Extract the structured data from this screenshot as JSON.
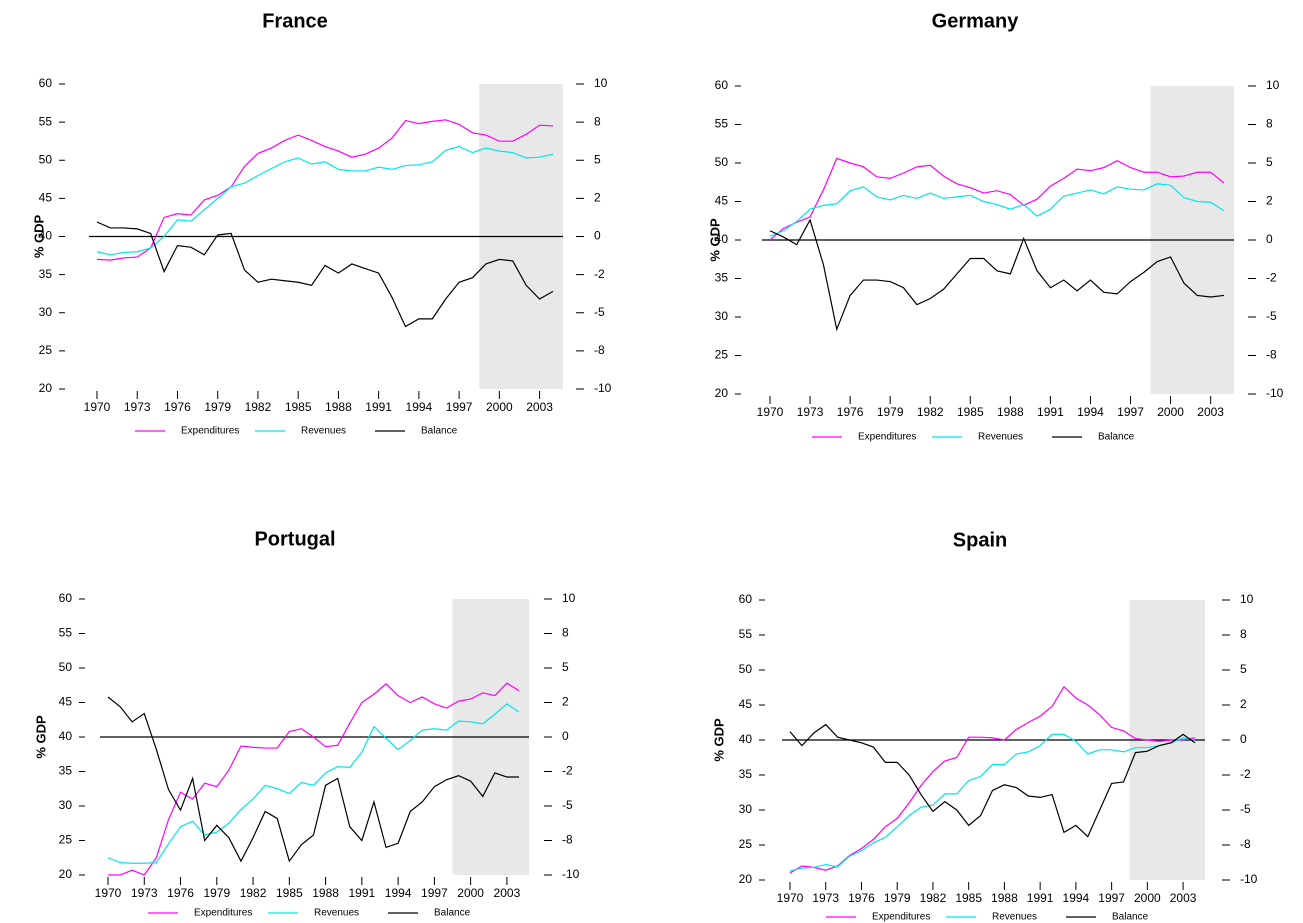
{
  "chart_data": [
    {
      "type": "line",
      "title": "France",
      "ylabel": "% GDP",
      "x": [
        1970,
        1971,
        1972,
        1973,
        1974,
        1975,
        1976,
        1977,
        1978,
        1979,
        1980,
        1981,
        1982,
        1983,
        1984,
        1985,
        1986,
        1987,
        1988,
        1989,
        1990,
        1991,
        1992,
        1993,
        1994,
        1995,
        1996,
        1997,
        1998,
        1999,
        2000,
        2001,
        2002,
        2003,
        2004
      ],
      "xlim": [
        1970,
        2004
      ],
      "xticks": [
        1970,
        1973,
        1976,
        1979,
        1982,
        1985,
        1988,
        1991,
        1994,
        1997,
        2000,
        2003
      ],
      "ylim": [
        20,
        60
      ],
      "yticks": [
        20,
        25,
        30,
        35,
        40,
        45,
        50,
        55,
        60
      ],
      "y2lim": [
        -10,
        10
      ],
      "y2ticks": [
        -10,
        {
          "value": -7.5,
          "label": "-8"
        },
        -5,
        {
          "value": -2.5,
          "label": "-2"
        },
        0,
        {
          "value": 2.5,
          "label": "2"
        },
        5,
        {
          "value": 7.5,
          "label": "8"
        },
        10
      ],
      "shade": [
        1998.5,
        2004
      ],
      "reference_line_y2": 0,
      "series": [
        {
          "name": "Expenditures",
          "color": "#ff00ff",
          "values": [
            37.0,
            36.9,
            37.2,
            37.3,
            38.5,
            42.5,
            43.0,
            42.8,
            44.8,
            45.4,
            46.5,
            49.2,
            50.9,
            51.6,
            52.6,
            53.3,
            52.6,
            51.8,
            51.2,
            50.4,
            50.8,
            51.6,
            52.9,
            55.2,
            54.8,
            55.1,
            55.3,
            54.7,
            53.6,
            53.3,
            52.5,
            52.5,
            53.4,
            54.6,
            54.5
          ]
        },
        {
          "name": "Revenues",
          "color": "#00e5ee",
          "values": [
            38.0,
            37.6,
            37.9,
            38.0,
            38.5,
            40.0,
            42.2,
            42.0,
            43.5,
            45.0,
            46.5,
            47.0,
            48.0,
            48.9,
            49.8,
            50.3,
            49.5,
            49.8,
            48.8,
            48.6,
            48.6,
            49.1,
            48.8,
            49.3,
            49.4,
            49.8,
            51.3,
            51.8,
            51.0,
            51.6,
            51.2,
            51.0,
            50.3,
            50.4,
            50.8
          ]
        },
        {
          "name": "Balance",
          "color": "#000000",
          "axis": "y2",
          "values": [
            0.95,
            0.56,
            0.56,
            0.5,
            0.2,
            -2.3,
            -0.6,
            -0.7,
            -1.2,
            0.1,
            0.2,
            -2.2,
            -3.0,
            -2.8,
            -2.9,
            -3.0,
            -3.2,
            -1.9,
            -2.4,
            -1.8,
            -2.1,
            -2.4,
            -4.0,
            -5.9,
            -5.4,
            -5.4,
            -4.1,
            -3.0,
            -2.7,
            -1.8,
            -1.5,
            -1.6,
            -3.2,
            -4.1,
            -3.6
          ]
        }
      ]
    },
    {
      "type": "line",
      "title": "Germany",
      "ylabel": "% GDP",
      "x": [
        1970,
        1971,
        1972,
        1973,
        1974,
        1975,
        1976,
        1977,
        1978,
        1979,
        1980,
        1981,
        1982,
        1983,
        1984,
        1985,
        1986,
        1987,
        1988,
        1989,
        1990,
        1991,
        1992,
        1993,
        1994,
        1995,
        1996,
        1997,
        1998,
        1999,
        2000,
        2001,
        2002,
        2003,
        2004
      ],
      "xlim": [
        1970,
        2004
      ],
      "xticks": [
        1970,
        1973,
        1976,
        1979,
        1982,
        1985,
        1988,
        1991,
        1994,
        1997,
        2000,
        2003
      ],
      "ylim": [
        20,
        60
      ],
      "yticks": [
        20,
        25,
        30,
        35,
        40,
        45,
        50,
        55,
        60
      ],
      "y2lim": [
        -10,
        10
      ],
      "y2ticks": [
        -10,
        {
          "value": -7.5,
          "label": "-8"
        },
        -5,
        {
          "value": -2.5,
          "label": "-2"
        },
        0,
        {
          "value": 2.5,
          "label": "2"
        },
        5,
        {
          "value": 7.5,
          "label": "8"
        },
        10
      ],
      "shade": [
        1998.5,
        2004
      ],
      "reference_line_y2": 0,
      "series": [
        {
          "name": "Expenditures",
          "color": "#ff00ff",
          "values": [
            40.0,
            41.5,
            42.3,
            43.0,
            46.5,
            50.6,
            50.0,
            49.5,
            48.2,
            48.0,
            48.7,
            49.5,
            49.7,
            48.3,
            47.3,
            46.8,
            46.1,
            46.4,
            45.9,
            44.5,
            45.3,
            47.0,
            48.0,
            49.2,
            49.0,
            49.4,
            50.3,
            49.4,
            48.8,
            48.8,
            48.2,
            48.3,
            48.8,
            48.8,
            47.4
          ]
        },
        {
          "name": "Revenues",
          "color": "#00e5ee",
          "values": [
            40.5,
            41.2,
            42.4,
            44.0,
            44.5,
            44.7,
            46.4,
            46.9,
            45.6,
            45.2,
            45.8,
            45.4,
            46.1,
            45.4,
            45.6,
            45.8,
            45.0,
            44.6,
            44.0,
            44.6,
            43.1,
            44.0,
            45.7,
            46.1,
            46.5,
            46.0,
            46.9,
            46.6,
            46.5,
            47.3,
            47.1,
            45.5,
            45.0,
            44.9,
            43.8
          ]
        },
        {
          "name": "Balance",
          "color": "#000000",
          "axis": "y2",
          "values": [
            0.6,
            0.2,
            -0.3,
            1.3,
            -1.6,
            -5.8,
            -3.6,
            -2.6,
            -2.6,
            -2.7,
            -3.1,
            -4.2,
            -3.8,
            -3.2,
            -2.2,
            -1.2,
            -1.2,
            -2.0,
            -2.2,
            0.1,
            -2.0,
            -3.1,
            -2.6,
            -3.3,
            -2.6,
            -3.4,
            -3.5,
            -2.7,
            -2.1,
            -1.4,
            -1.1,
            -2.8,
            -3.6,
            -3.7,
            -3.6
          ]
        }
      ]
    },
    {
      "type": "line",
      "title": "Portugal",
      "ylabel": "% GDP",
      "x": [
        1970,
        1971,
        1972,
        1973,
        1974,
        1975,
        1976,
        1977,
        1978,
        1979,
        1980,
        1981,
        1982,
        1983,
        1984,
        1985,
        1986,
        1987,
        1988,
        1989,
        1990,
        1991,
        1992,
        1993,
        1994,
        1995,
        1996,
        1997,
        1998,
        1999,
        2000,
        2001,
        2002,
        2003,
        2004
      ],
      "xlim": [
        1970,
        2004
      ],
      "xticks": [
        1970,
        1973,
        1976,
        1979,
        1982,
        1985,
        1988,
        1991,
        1994,
        1997,
        2000,
        2003
      ],
      "ylim": [
        20,
        60
      ],
      "yticks": [
        20,
        25,
        30,
        35,
        40,
        45,
        50,
        55,
        60
      ],
      "y2lim": [
        -10,
        10
      ],
      "y2ticks": [
        -10,
        {
          "value": -7.5,
          "label": "-8"
        },
        -5,
        {
          "value": -2.5,
          "label": "-2"
        },
        0,
        {
          "value": 2.5,
          "label": "2"
        },
        5,
        {
          "value": 7.5,
          "label": "8"
        },
        10
      ],
      "shade": [
        1998.5,
        2004
      ],
      "reference_line_y2": 0,
      "series": [
        {
          "name": "Expenditures",
          "color": "#ff00ff",
          "values": [
            20.0,
            20.0,
            20.7,
            20.0,
            22.5,
            28.0,
            32.0,
            31.0,
            33.3,
            32.8,
            35.2,
            38.7,
            38.5,
            38.4,
            38.4,
            40.8,
            41.2,
            40.0,
            38.6,
            38.8,
            42.0,
            45.0,
            46.2,
            47.7,
            46.0,
            45.0,
            45.8,
            44.8,
            44.2,
            45.2,
            45.5,
            46.4,
            46.0,
            47.8,
            46.7
          ]
        },
        {
          "name": "Revenues",
          "color": "#00e5ee",
          "values": [
            22.5,
            21.8,
            21.7,
            21.7,
            21.8,
            24.5,
            27.0,
            27.8,
            25.8,
            26.2,
            27.5,
            29.5,
            31.0,
            33.0,
            32.5,
            31.8,
            33.4,
            33.0,
            34.8,
            35.7,
            35.6,
            37.8,
            41.5,
            39.8,
            38.2,
            39.5,
            41.0,
            41.2,
            41.0,
            42.3,
            42.2,
            41.9,
            43.3,
            44.8,
            43.6
          ]
        },
        {
          "name": "Balance",
          "color": "#000000",
          "axis": "y2",
          "values": [
            2.9,
            2.2,
            1.1,
            1.7,
            -0.9,
            -3.8,
            -5.3,
            -3.0,
            -7.5,
            -6.4,
            -7.3,
            -9.0,
            -7.3,
            -5.4,
            -5.9,
            -9.0,
            -7.8,
            -7.1,
            -3.5,
            -3.0,
            -6.5,
            -7.5,
            -4.7,
            -8.0,
            -7.7,
            -5.4,
            -4.7,
            -3.6,
            -3.1,
            -2.8,
            -3.2,
            -4.3,
            -2.6,
            -2.9,
            -2.9
          ]
        }
      ]
    },
    {
      "type": "line",
      "title": "Spain",
      "ylabel": "% GDP",
      "x": [
        1970,
        1971,
        1972,
        1973,
        1974,
        1975,
        1976,
        1977,
        1978,
        1979,
        1980,
        1981,
        1982,
        1983,
        1984,
        1985,
        1986,
        1987,
        1988,
        1989,
        1990,
        1991,
        1992,
        1993,
        1994,
        1995,
        1996,
        1997,
        1998,
        1999,
        2000,
        2001,
        2002,
        2003,
        2004
      ],
      "xlim": [
        1970,
        2004
      ],
      "xticks": [
        1970,
        1973,
        1976,
        1979,
        1982,
        1985,
        1988,
        1991,
        1994,
        1997,
        2000,
        2003
      ],
      "ylim": [
        20,
        60
      ],
      "yticks": [
        20,
        25,
        30,
        35,
        40,
        45,
        50,
        55,
        60
      ],
      "y2lim": [
        -10,
        10
      ],
      "y2ticks": [
        -10,
        {
          "value": -7.5,
          "label": "-8"
        },
        -5,
        {
          "value": -2.5,
          "label": "-2"
        },
        0,
        {
          "value": 2.5,
          "label": "2"
        },
        5,
        {
          "value": 7.5,
          "label": "8"
        },
        10
      ],
      "shade": [
        1998.5,
        2004
      ],
      "reference_line_y2": 0,
      "series": [
        {
          "name": "Expenditures",
          "color": "#ff00ff",
          "values": [
            21.0,
            22.0,
            21.8,
            21.4,
            22.0,
            23.5,
            24.5,
            25.8,
            27.6,
            28.8,
            31.0,
            33.5,
            35.5,
            37.0,
            37.5,
            40.4,
            40.4,
            40.3,
            40.0,
            41.5,
            42.5,
            43.4,
            44.8,
            47.6,
            46.0,
            45.0,
            43.6,
            41.8,
            41.3,
            40.2,
            40.0,
            39.8,
            40.0,
            40.0,
            40.3
          ]
        },
        {
          "name": "Revenues",
          "color": "#00e5ee",
          "values": [
            21.3,
            21.7,
            21.8,
            22.2,
            21.9,
            23.4,
            24.2,
            25.3,
            26.1,
            27.6,
            29.2,
            30.4,
            30.7,
            32.3,
            32.3,
            34.2,
            34.8,
            36.5,
            36.5,
            38.0,
            38.3,
            39.2,
            40.8,
            40.8,
            39.8,
            38.0,
            38.6,
            38.6,
            38.3,
            38.9,
            38.9,
            39.2,
            39.6,
            40.3,
            40.0
          ]
        },
        {
          "name": "Balance",
          "color": "#000000",
          "axis": "y2",
          "values": [
            0.6,
            -0.4,
            0.5,
            1.1,
            0.2,
            0,
            -0.2,
            -0.5,
            -1.6,
            -1.6,
            -2.5,
            -3.9,
            -5.1,
            -4.4,
            -5.0,
            -6.1,
            -5.4,
            -3.6,
            -3.2,
            -3.4,
            -4.0,
            -4.1,
            -3.9,
            -6.6,
            -6.1,
            -6.9,
            -5.0,
            -3.1,
            -3.0,
            -0.9,
            -0.8,
            -0.4,
            -0.2,
            0.4,
            -0.2
          ]
        }
      ]
    }
  ]
}
